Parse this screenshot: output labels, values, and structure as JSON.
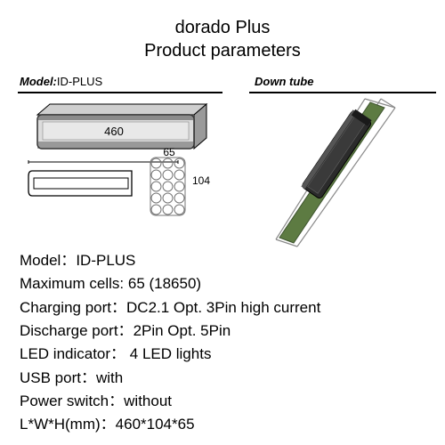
{
  "title": {
    "line1": "dorado Plus",
    "line2": "Product parameters"
  },
  "header": {
    "model_label": "Model:",
    "model_value": "ID-PLUS",
    "downtube_label": "Down tube"
  },
  "dimensions": {
    "length": "460",
    "width": "65",
    "height": "104"
  },
  "battery_3d": {
    "body_fill": "#d9d9d9",
    "edge": "#000000",
    "shadow": "#6b6b6b"
  },
  "side_view": {
    "stroke": "#000000",
    "outer_w": 170,
    "outer_h": 28,
    "corner_r": 6
  },
  "cell_grid": {
    "rows": 5,
    "cols": 3,
    "cell_r": 5.5,
    "stroke": "#767676",
    "gap": 2
  },
  "frame": {
    "tube_fill": "#5d7b42",
    "tube_stroke": "#3f5530",
    "outline": "#8a8a8a",
    "battery_fill": "#2b2b2b",
    "battery_stroke": "#000000"
  },
  "specs": [
    {
      "label": "Model：",
      "value": "ID-PLUS"
    },
    {
      "label": "Maximum cells: ",
      "value": "65 (18650)"
    },
    {
      "label": "Charging port：",
      "value": "DC2.1 Opt. 3Pin high current"
    },
    {
      "label": "Discharge port：",
      "value": "2Pin Opt. 5Pin"
    },
    {
      "label": "LED indicator：",
      "value": " 4 LED lights"
    },
    {
      "label": "USB port：",
      "value": "with"
    },
    {
      "label": "Power switch：",
      "value": "without"
    },
    {
      "label": "L*W*H(mm)：",
      "value": "460*104*65"
    }
  ],
  "colors": {
    "text": "#000000",
    "bg": "#ffffff"
  }
}
